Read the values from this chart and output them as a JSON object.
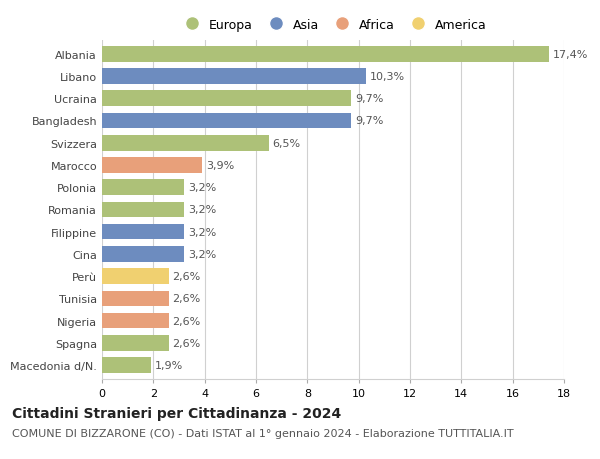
{
  "categories": [
    "Albania",
    "Libano",
    "Ucraina",
    "Bangladesh",
    "Svizzera",
    "Marocco",
    "Polonia",
    "Romania",
    "Filippine",
    "Cina",
    "Perù",
    "Tunisia",
    "Nigeria",
    "Spagna",
    "Macedonia d/N."
  ],
  "values": [
    17.4,
    10.3,
    9.7,
    9.7,
    6.5,
    3.9,
    3.2,
    3.2,
    3.2,
    3.2,
    2.6,
    2.6,
    2.6,
    2.6,
    1.9
  ],
  "labels": [
    "17,4%",
    "10,3%",
    "9,7%",
    "9,7%",
    "6,5%",
    "3,9%",
    "3,2%",
    "3,2%",
    "3,2%",
    "3,2%",
    "2,6%",
    "2,6%",
    "2,6%",
    "2,6%",
    "1,9%"
  ],
  "continents": [
    "Europa",
    "Asia",
    "Europa",
    "Asia",
    "Europa",
    "Africa",
    "Europa",
    "Europa",
    "Asia",
    "Asia",
    "America",
    "Africa",
    "Africa",
    "Europa",
    "Europa"
  ],
  "colors": {
    "Europa": "#adc178",
    "Asia": "#6d8cbf",
    "Africa": "#e8a07a",
    "America": "#f0d070"
  },
  "legend_order": [
    "Europa",
    "Asia",
    "Africa",
    "America"
  ],
  "xlim": [
    0,
    18
  ],
  "xticks": [
    0,
    2,
    4,
    6,
    8,
    10,
    12,
    14,
    16,
    18
  ],
  "title": "Cittadini Stranieri per Cittadinanza - 2024",
  "subtitle": "COMUNE DI BIZZARONE (CO) - Dati ISTAT al 1° gennaio 2024 - Elaborazione TUTTITALIA.IT",
  "title_fontsize": 10,
  "subtitle_fontsize": 8,
  "bar_height": 0.7,
  "label_fontsize": 8,
  "tick_fontsize": 8,
  "legend_fontsize": 9,
  "background_color": "#ffffff",
  "grid_color": "#d0d0d0"
}
